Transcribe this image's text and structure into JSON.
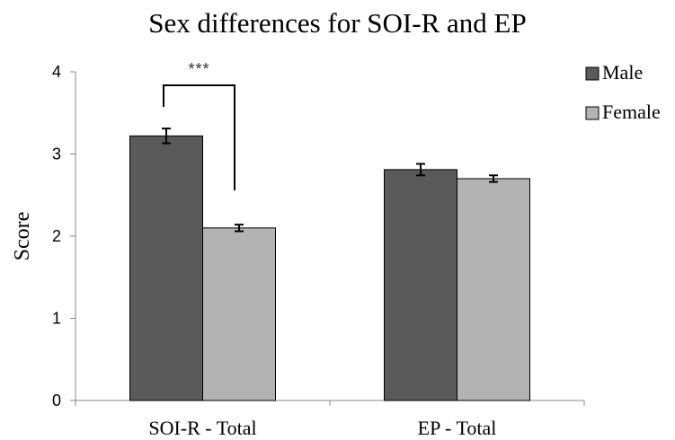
{
  "chart_data": {
    "type": "bar",
    "title": "Sex differences for SOI-R and EP",
    "xlabel": "",
    "ylabel": "Score",
    "ylim": [
      0,
      4
    ],
    "yticks": [
      0,
      1,
      2,
      3,
      4
    ],
    "categories": [
      "SOI-R - Total",
      "EP - Total"
    ],
    "series": [
      {
        "name": "Male",
        "values": [
          3.22,
          2.81
        ],
        "errors": [
          0.09,
          0.07
        ],
        "color": "#5a5a5a"
      },
      {
        "name": "Female",
        "values": [
          2.1,
          2.7
        ],
        "errors": [
          0.04,
          0.04
        ],
        "color": "#b3b3b3"
      }
    ],
    "legend_position": "top-right",
    "grid": false,
    "annotations": [
      {
        "text": "***",
        "category": "SOI-R - Total",
        "bracket": true
      }
    ]
  }
}
